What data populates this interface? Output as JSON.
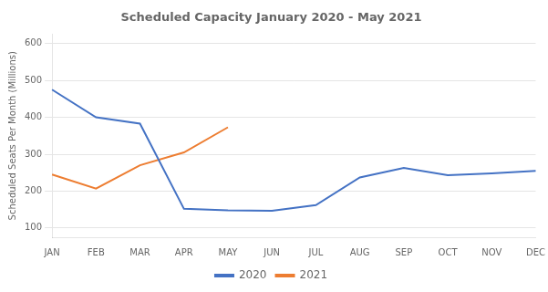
{
  "chart_data": {
    "type": "line",
    "title": "Scheduled Capacity January 2020 - May 2021",
    "ylabel": "Scheduled Seats Per Month (Millions)",
    "categories": [
      "JAN",
      "FEB",
      "MAR",
      "APR",
      "MAY",
      "JUN",
      "JUL",
      "AUG",
      "SEP",
      "OCT",
      "NOV",
      "DEC"
    ],
    "series": [
      {
        "name": "2020",
        "color": "#4472C4",
        "values": [
          475,
          400,
          383,
          152,
          148,
          147,
          162,
          237,
          263,
          243,
          248,
          255
        ]
      },
      {
        "name": "2021",
        "color": "#ED7D31",
        "values": [
          245,
          207,
          270,
          305,
          373,
          null,
          null,
          null,
          null,
          null,
          null,
          null
        ]
      }
    ],
    "ylim": [
      75,
      625
    ],
    "yticks": [
      100,
      200,
      300,
      400,
      500,
      600
    ],
    "grid": true,
    "legend": "bottom"
  }
}
